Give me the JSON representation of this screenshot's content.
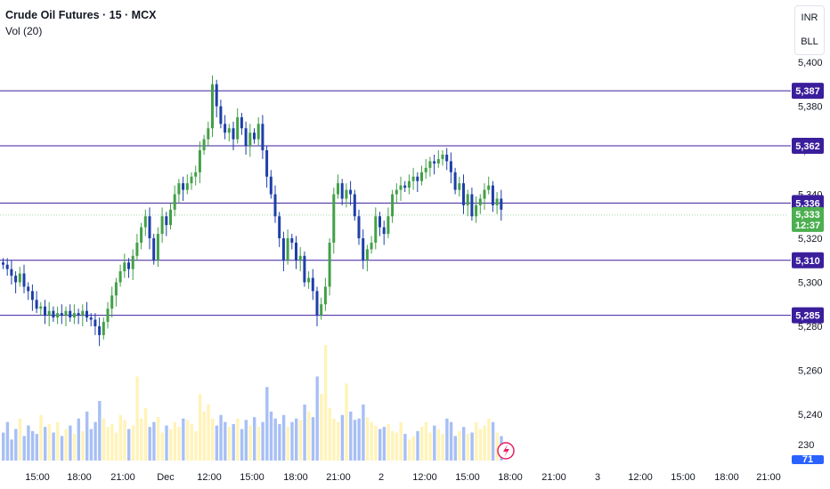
{
  "legend": {
    "title": "Crude Oil Futures · 15 · MCX",
    "indicator": "Vol (20)"
  },
  "scale_buttons": [
    "INR",
    "BLL"
  ],
  "colors": {
    "up": "#43a047",
    "down": "#1e3fa8",
    "level": "#3b1e9c",
    "vol_up": "#fff3b8",
    "vol_down": "#a7bff5",
    "last": "#4caf50"
  },
  "chart_data": {
    "type": "candlestick",
    "title": "Crude Oil Futures · 15 · MCX",
    "y_ticks": [
      5240,
      5260,
      5280,
      5300,
      5320,
      5340,
      5360,
      5380,
      5400
    ],
    "y_tick_labels": [
      "5,240",
      "5,260",
      "5,280",
      "5,300",
      "5,320",
      "5,340",
      "5,360",
      "5,380",
      "5,400"
    ],
    "x_tick_labels": [
      "15:00",
      "18:00",
      "21:00",
      "Dec",
      "12:00",
      "15:00",
      "18:00",
      "21:00",
      "2",
      "12:00",
      "15:00",
      "18:00",
      "21:00",
      "3",
      "12:00",
      "15:00",
      "18:00",
      "21:00"
    ],
    "horizontal_levels": [
      {
        "value": 5387,
        "label": "5,387"
      },
      {
        "value": 5362,
        "label": "5,362"
      },
      {
        "value": 5336,
        "label": "5,336"
      },
      {
        "value": 5310,
        "label": "5,310"
      },
      {
        "value": 5285,
        "label": "5,285"
      }
    ],
    "last_price": {
      "value": 5333,
      "label": "5,333",
      "countdown": "12:37"
    },
    "volume_scale": {
      "label": "230",
      "current": "71"
    },
    "candles_close": [
      5308,
      5306,
      5303,
      5300,
      5304,
      5298,
      5296,
      5292,
      5288,
      5289,
      5285,
      5287,
      5284,
      5286,
      5285,
      5287,
      5284,
      5286,
      5285,
      5287,
      5284,
      5283,
      5280,
      5276,
      5282,
      5288,
      5294,
      5300,
      5305,
      5309,
      5306,
      5312,
      5318,
      5325,
      5330,
      5320,
      5310,
      5322,
      5330,
      5326,
      5333,
      5340,
      5345,
      5342,
      5345,
      5348,
      5350,
      5360,
      5365,
      5370,
      5390,
      5380,
      5372,
      5368,
      5370,
      5365,
      5375,
      5370,
      5362,
      5368,
      5365,
      5372,
      5360,
      5348,
      5340,
      5330,
      5320,
      5310,
      5320,
      5318,
      5310,
      5312,
      5300,
      5302,
      5296,
      5285,
      5290,
      5298,
      5318,
      5340,
      5345,
      5338,
      5342,
      5340,
      5330,
      5320,
      5310,
      5315,
      5318,
      5330,
      5325,
      5322,
      5330,
      5340,
      5342,
      5344,
      5343,
      5346,
      5348,
      5346,
      5350,
      5352,
      5355,
      5354,
      5356,
      5358,
      5355,
      5350,
      5342,
      5345,
      5335,
      5340,
      5330,
      5335,
      5338,
      5342,
      5344,
      5335,
      5338,
      5333
    ],
    "volumes": [
      40,
      55,
      30,
      45,
      60,
      35,
      50,
      42,
      38,
      65,
      48,
      52,
      40,
      55,
      35,
      45,
      50,
      38,
      60,
      42,
      70,
      45,
      55,
      85,
      60,
      48,
      52,
      40,
      65,
      58,
      45,
      50,
      120,
      60,
      75,
      48,
      55,
      62,
      40,
      50,
      45,
      55,
      48,
      60,
      58,
      52,
      42,
      95,
      70,
      80,
      60,
      50,
      65,
      55,
      48,
      52,
      60,
      45,
      58,
      50,
      62,
      48,
      55,
      105,
      70,
      60,
      52,
      65,
      48,
      55,
      60,
      58,
      80,
      70,
      62,
      120,
      95,
      165,
      75,
      60,
      55,
      65,
      110,
      70,
      58,
      60,
      80,
      62,
      55,
      50,
      45,
      48,
      52,
      42,
      40,
      55,
      38,
      30,
      35,
      42,
      48,
      55,
      40,
      50,
      45,
      38,
      60,
      55,
      35,
      42,
      48,
      38,
      40,
      55,
      45,
      50,
      60,
      55,
      40,
      35
    ]
  }
}
